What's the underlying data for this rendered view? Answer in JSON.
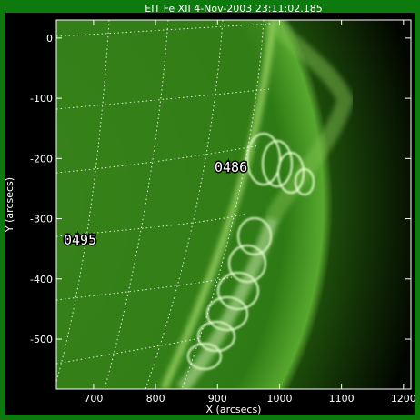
{
  "title": "EIT Fe XII  4-Nov-2003 23:11:02.185",
  "xlabel": "X (arcsecs)",
  "ylabel": "Y (arcsecs)",
  "xlim": [
    640,
    1212
  ],
  "ylim": [
    -583,
    30
  ],
  "xticks": [
    700,
    800,
    900,
    1000,
    1100,
    1200
  ],
  "yticks": [
    0,
    -100,
    -200,
    -300,
    -400,
    -500
  ],
  "annotations": [
    "0486",
    "0495"
  ]
}
